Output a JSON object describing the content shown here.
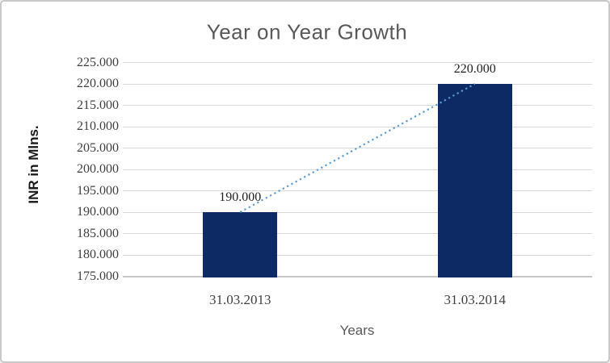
{
  "window": {
    "background": "#ffffff",
    "border_color": "#c9c9c9"
  },
  "chart_data": {
    "type": "bar",
    "title": "Year on Year Growth",
    "xlabel": "Years",
    "ylabel": "INR in Mlns.",
    "categories": [
      "31.03.2013",
      "31.03.2014"
    ],
    "values": [
      190.0,
      220.0
    ],
    "data_labels": [
      "190.000",
      "220.000"
    ],
    "ylim": [
      175.0,
      225.0
    ],
    "ytick_step": 5.0,
    "ytick_labels": [
      "225.000",
      "220.000",
      "215.000",
      "210.000",
      "205.000",
      "200.000",
      "195.000",
      "190.000",
      "185.000",
      "180.000",
      "175.000"
    ],
    "grid": true,
    "legend": "none",
    "bar_color": "#0e2a64",
    "title_color": "#595959",
    "axis_text_color": "#3f3f3f",
    "trendline": {
      "type": "linear",
      "style": "dotted",
      "color": "#5b9bd5"
    }
  }
}
